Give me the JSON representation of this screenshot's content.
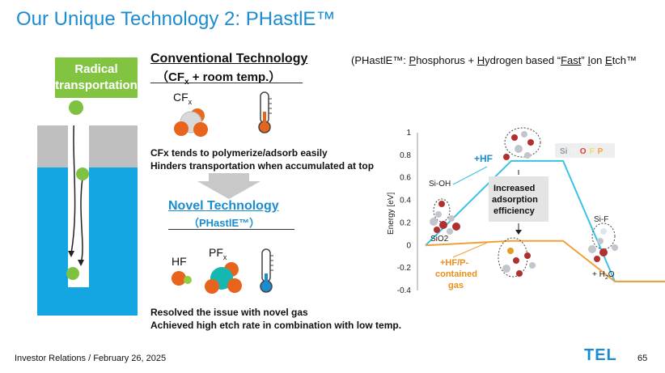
{
  "title": "Our Unique Technology 2: PHastlE™",
  "left_panel": {
    "badge_line1": "Radical",
    "badge_line2": "transportation"
  },
  "conventional": {
    "title": "Conventional Technology",
    "subtitle_prefix": "（CF",
    "subtitle_sub": "x",
    "subtitle_suffix": " + room temp.）",
    "molecule_label": "CF",
    "molecule_sub": "x",
    "note_1": "CFx tends to polymerize/adsorb easily",
    "note_2": "Hinders transportation when accumulated at top"
  },
  "acronym": {
    "open": "(PHastlE™: ",
    "p_first": "P",
    "p_rest": "hosphorus + ",
    "h_first": "H",
    "h_rest": "ydrogen based “",
    "f_word": "Fast",
    "mid": "” ",
    "i_first": "I",
    "i_rest": "on ",
    "e_first": "E",
    "e_rest": "tch™"
  },
  "novel": {
    "title": "Novel Technology",
    "subtitle": "（PHastlE™）",
    "hf_label": "HF",
    "pf_label": "PF",
    "pf_sub": "x",
    "note_1": "Resolved the issue with novel gas",
    "note_2": "Achieved high etch rate in combination with low temp."
  },
  "energy_chart": {
    "ylabel": "Energy [eV]",
    "ticks": [
      "1",
      "0.8",
      "0.6",
      "0.4",
      "0.2",
      "0",
      "-0.2",
      "-0.4"
    ],
    "legend": [
      "Si",
      "H",
      "O",
      "F",
      "P"
    ],
    "legend_colors": [
      "#8b9aa8",
      "#f2f2f2",
      "#e23b2e",
      "#e8e36a",
      "#f2a33a"
    ],
    "label_hf": "+HF",
    "label_hfp_1": "+HF/P-",
    "label_hfp_2": "contained",
    "label_hfp_3": "gas",
    "label_sioh": "Si-OH",
    "label_sio2": "SiO2",
    "label_sif": "Si-F",
    "label_h2o_prefix": "+ H",
    "label_h2o_sub": "2",
    "label_h2o_suffix": "O",
    "box_1": "Increased",
    "box_2": "adsorption",
    "box_3": "efficiency",
    "colors": {
      "hf_path": "#3cc0e6",
      "hfp_path": "#f0a038",
      "hf_text": "#1a8ccf",
      "hfp_text": "#e8901a"
    },
    "hf_path": [
      [
        0,
        0
      ],
      [
        1,
        0.75
      ],
      [
        2,
        0.75
      ],
      [
        3,
        -0.32
      ],
      [
        4,
        -0.32
      ]
    ],
    "hfp_path": [
      [
        0,
        0
      ],
      [
        1,
        0.04
      ],
      [
        2,
        0.04
      ],
      [
        3,
        -0.32
      ],
      [
        4,
        -0.32
      ]
    ]
  },
  "footer": {
    "left": "Investor Relations / February 26, 2025",
    "logo": "TEL",
    "page": "65"
  }
}
